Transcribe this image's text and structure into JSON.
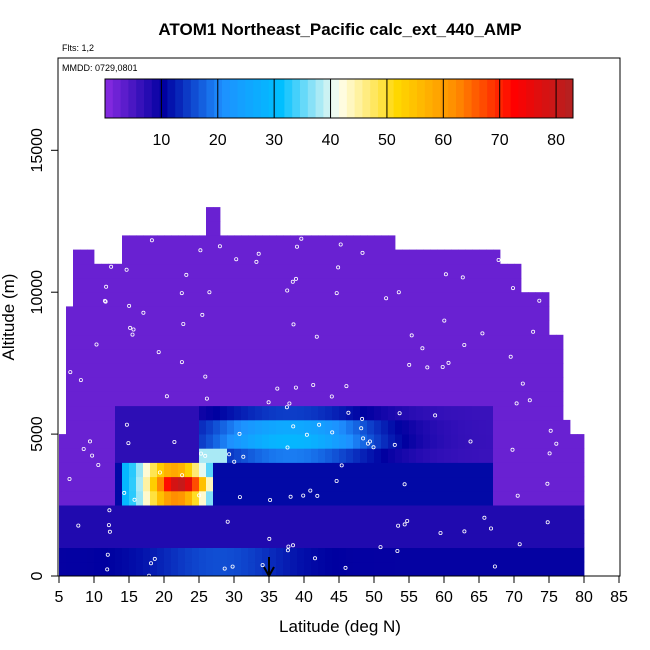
{
  "chart_data": {
    "type": "heatmap",
    "title": "ATOM1 Northeast_Pacific calc_ext_440_AMP",
    "annotations": [
      "Flts: 1,2",
      "MMDD: 0729,0801"
    ],
    "xlabel": "Latitude (deg N)",
    "ylabel": "Altitude (m)",
    "xlim": [
      5,
      85
    ],
    "ylim": [
      0,
      18000
    ],
    "x_ticks": [
      "5",
      "10",
      "15",
      "20",
      "25",
      "30",
      "35",
      "40",
      "45",
      "50",
      "55",
      "60",
      "65",
      "70",
      "75",
      "80",
      "85"
    ],
    "y_ticks": [
      "0",
      "5000",
      "10000",
      "15000"
    ],
    "colorbar": {
      "ticks": [
        "10",
        "20",
        "30",
        "40",
        "50",
        "60",
        "70",
        "80"
      ],
      "range": [
        0,
        83
      ],
      "colors": [
        "#8a2be2",
        "#0000a0",
        "#1e90ff",
        "#00bfff",
        "#fffff0",
        "#ffd700",
        "#ff8c00",
        "#ff0000",
        "#b22222"
      ]
    },
    "regions": [
      {
        "name": "background",
        "value": 2
      },
      {
        "name": "mid-level blue band",
        "lat": [
          26,
          67
        ],
        "alt": [
          3800,
          5900
        ],
        "value": 28
      },
      {
        "name": "dark band 2700-3800",
        "lat": [
          13,
          67
        ],
        "alt": [
          2700,
          3800
        ],
        "value": 10
      },
      {
        "name": "surface band",
        "lat": [
          5,
          78
        ],
        "alt": [
          0,
          1000
        ],
        "value": 12
      },
      {
        "name": "plume peak",
        "lat": [
          19,
          26
        ],
        "alt": [
          2900,
          3600
        ],
        "value": 78
      }
    ],
    "marker": {
      "lat": 35,
      "label": "arrow"
    }
  }
}
